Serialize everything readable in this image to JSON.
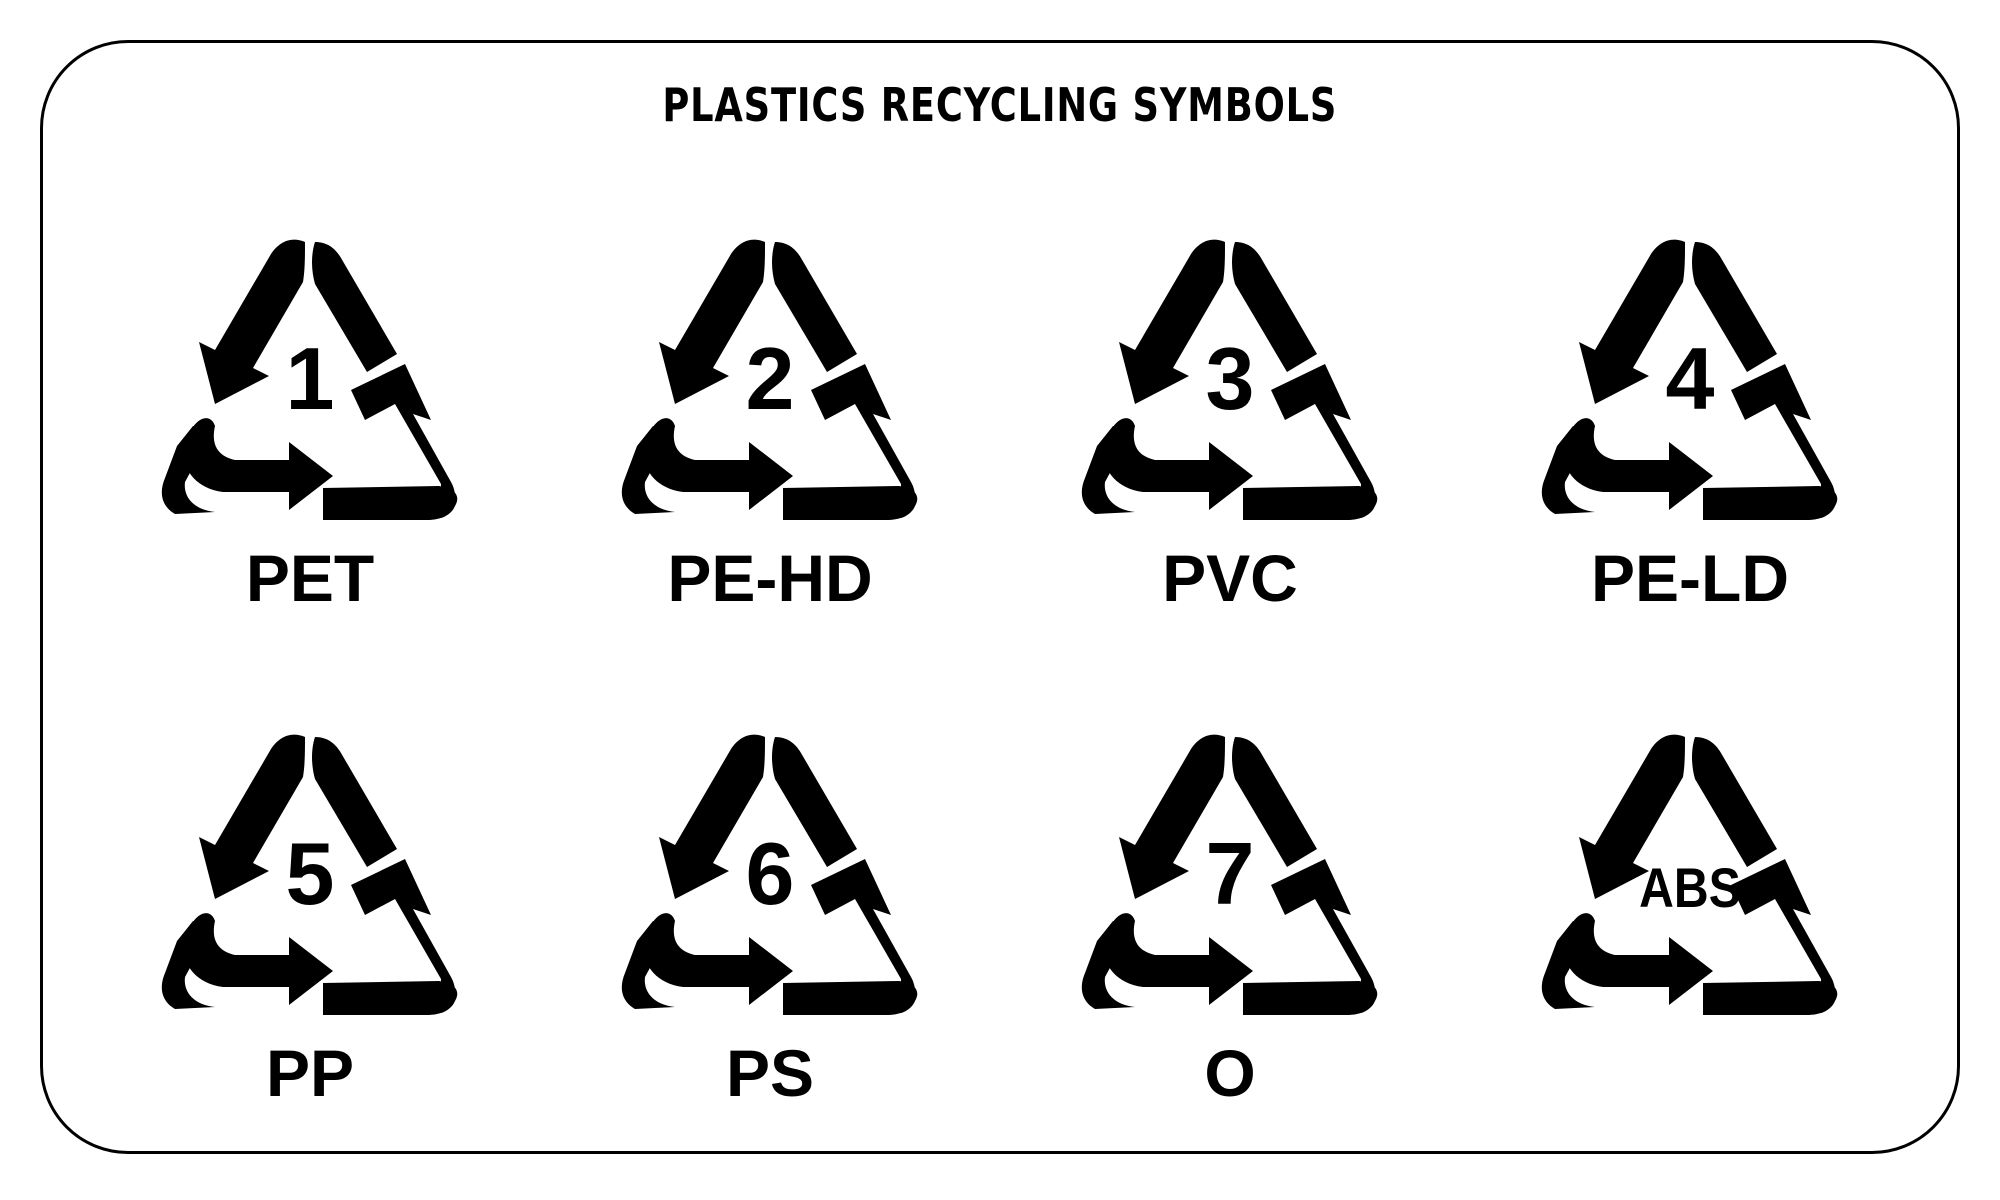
{
  "title": "PLASTICS RECYCLING SYMBOLS",
  "colors": {
    "ink": "#000000",
    "background": "#ffffff"
  },
  "symbols": [
    {
      "code": "1",
      "label": "PET",
      "icon": "recycle-arrows-icon"
    },
    {
      "code": "2",
      "label": "PE-HD",
      "icon": "recycle-arrows-icon"
    },
    {
      "code": "3",
      "label": "PVC",
      "icon": "recycle-arrows-icon"
    },
    {
      "code": "4",
      "label": "PE-LD",
      "icon": "recycle-arrows-icon"
    },
    {
      "code": "5",
      "label": "PP",
      "icon": "recycle-arrows-icon"
    },
    {
      "code": "6",
      "label": "PS",
      "icon": "recycle-arrows-icon"
    },
    {
      "code": "7",
      "label": "O",
      "icon": "recycle-arrows-icon"
    },
    {
      "code": "ABS",
      "label": "",
      "icon": "recycle-arrows-icon"
    }
  ]
}
